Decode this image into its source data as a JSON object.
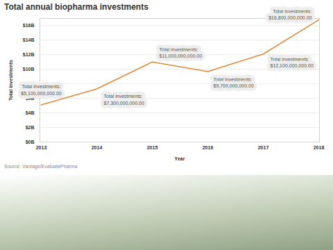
{
  "chart_data": {
    "type": "line",
    "title": "Total annual biopharma investments",
    "x_label": "Year",
    "y_label": "Total investments",
    "source": "Source: Vantage/EvaluatePharma",
    "categories": [
      "2013",
      "2014",
      "2015",
      "2016",
      "2017",
      "2018"
    ],
    "values": [
      5100000000,
      7300000000,
      11000000000,
      9700000000,
      12100000000,
      16800000000
    ],
    "value_labels": [
      "Total investments:\n$5,100,000,000.00",
      "Total investments:\n$7,300,000,000.00",
      "Total investments:\n$11,000,000,000.00",
      "Total investments:\n$9,700,000,000.00",
      "Total investments:\n$12,100,000,000.00",
      "Total investments:\n$16,800,000,000.00"
    ],
    "data_labels": true,
    "color": "#e08a3c",
    "ylim": [
      0,
      17000000000
    ],
    "yticks": [
      {
        "value": 0,
        "label": "$0B"
      },
      {
        "value": 2000000000,
        "label": "$2B"
      },
      {
        "value": 4000000000,
        "label": "$4B"
      },
      {
        "value": 6000000000,
        "label": "$6B"
      },
      {
        "value": 8000000000,
        "label": "$8B"
      },
      {
        "value": 10000000000,
        "label": "$10B"
      },
      {
        "value": 12000000000,
        "label": "$12B"
      },
      {
        "value": 14000000000,
        "label": "$14B"
      },
      {
        "value": 16000000000,
        "label": "$16B"
      }
    ],
    "grid": true
  }
}
